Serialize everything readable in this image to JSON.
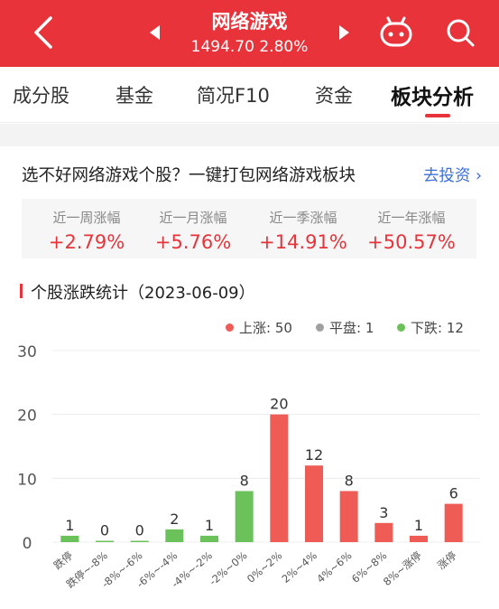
{
  "header": {
    "title": "网络游戏",
    "quote": "1494.70  2.80%"
  },
  "tabs": [
    {
      "label": "成分股"
    },
    {
      "label": "基金"
    },
    {
      "label": "简况F10"
    },
    {
      "label": "资金"
    },
    {
      "label": "板块分析"
    }
  ],
  "promo": {
    "text": "选不好网络游戏个股？一键打包网络游戏板块",
    "link": "去投资 ›"
  },
  "stats": [
    {
      "label": "近一周涨幅",
      "value": "+2.79%"
    },
    {
      "label": "近一月涨幅",
      "value": "+5.76%"
    },
    {
      "label": "近一季涨幅",
      "value": "+14.91%"
    },
    {
      "label": "近一年涨幅",
      "value": "+50.57%"
    }
  ],
  "section_title": "个股涨跌统计（2023-06-09）",
  "legend": {
    "up": "上涨: 50",
    "flat": "平盘: 1",
    "down": "下跌: 12"
  },
  "colors": {
    "red": "#e8333a",
    "green": "#6cc25a",
    "gray": "#a0a0a0",
    "bar_red": "#ef5b55"
  },
  "chart_data": {
    "type": "bar",
    "categories": [
      "跌停",
      "跌停~-8%",
      "-8%~-6%",
      "-6%~-4%",
      "-4%~-2%",
      "-2%~0%",
      "0%~2%",
      "2%~4%",
      "4%~6%",
      "6%~8%",
      "8%~涨停",
      "涨停"
    ],
    "values": [
      1,
      0,
      0,
      2,
      1,
      8,
      20,
      12,
      8,
      3,
      1,
      6
    ],
    "bar_colors": [
      "green",
      "green",
      "green",
      "green",
      "green",
      "green",
      "red",
      "red",
      "red",
      "red",
      "red",
      "red"
    ],
    "y_ticks": [
      0,
      10,
      20,
      30
    ],
    "ylim": [
      0,
      30
    ],
    "grid": true
  }
}
